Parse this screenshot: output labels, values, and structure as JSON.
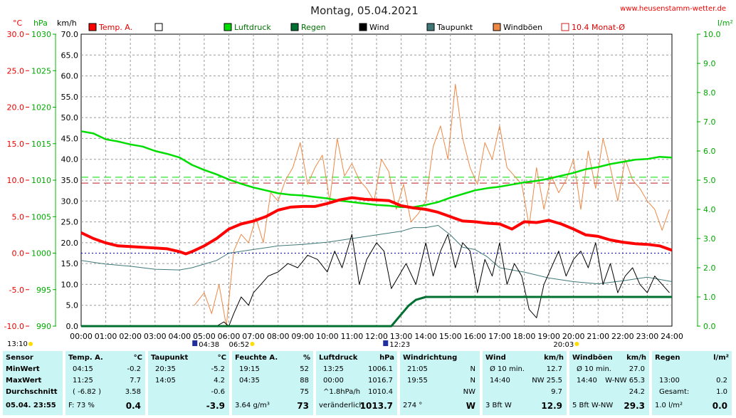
{
  "header": {
    "title": "Montag, 05.04.2021",
    "site": "www.heusenstamm-wetter.de"
  },
  "units": {
    "left1": "°C",
    "left2": "hPa",
    "left3": "km/h",
    "right": "l/m²"
  },
  "legend": [
    {
      "label": "Temp. A.",
      "color": "#ff0000",
      "filled": true
    },
    {
      "label": "",
      "color": "#000000",
      "filled": false
    },
    {
      "label": "Luftdruck",
      "color": "#00dd00",
      "filled": true
    },
    {
      "label": "Regen",
      "color": "#007030",
      "filled": true
    },
    {
      "label": "Wind",
      "color": "#000000",
      "filled": true
    },
    {
      "label": "Taupunkt",
      "color": "#407878",
      "filled": true
    },
    {
      "label": "Windböen",
      "color": "#ee8844",
      "filled": true
    },
    {
      "label": "10.4 Monat-Ø",
      "color": "#cc2222",
      "filled": false
    }
  ],
  "markers": {
    "sunrise": "04:38",
    "moonrise": "06:52",
    "moonset": "12:23",
    "sunset": "20:03",
    "left_time": "13:10"
  },
  "chart_data": {
    "type": "line",
    "x_ticks": [
      "00:00",
      "01:00",
      "02:00",
      "03:00",
      "04:00",
      "05:00",
      "06:00",
      "07:00",
      "08:00",
      "09:00",
      "10:00",
      "11:00",
      "12:00",
      "13:00",
      "14:00",
      "15:00",
      "16:00",
      "17:00",
      "18:00",
      "19:00",
      "20:00",
      "21:00",
      "22:00",
      "23:00",
      "24:00"
    ],
    "axes": {
      "temp": {
        "label": "°C",
        "min": -10,
        "max": 30,
        "ticks": [
          "30.0",
          "25.0",
          "20.0",
          "15.0",
          "10.0",
          "5.0",
          "0.0",
          "-5.0",
          "-10.0"
        ]
      },
      "pressure": {
        "label": "hPa",
        "min": 990,
        "max": 1030,
        "ticks": [
          "1030",
          "1025",
          "1020",
          "1015",
          "1010",
          "1005",
          "1000",
          "995",
          "990"
        ]
      },
      "wind": {
        "label": "km/h",
        "min": 0,
        "max": 70,
        "ticks": [
          "70.0",
          "65.0",
          "60.0",
          "55.0",
          "50.0",
          "45.0",
          "40.0",
          "35.0",
          "30.0",
          "25.0",
          "20.0",
          "15.0",
          "10.0",
          "5.0",
          "0.0"
        ]
      },
      "rain": {
        "label": "l/m²",
        "min": 0,
        "max": 10,
        "ticks": [
          "10.0",
          "9.0",
          "8.0",
          "7.0",
          "6.0",
          "5.0",
          "4.0",
          "3.0",
          "2.0",
          "1.0",
          "0.0"
        ]
      }
    },
    "reference_lines": {
      "pressure_avg": 1010.4,
      "temp_month_avg": 9.6,
      "zero": 0
    },
    "series": [
      {
        "name": "Temp. A.",
        "axis": "temp",
        "color": "#ff0000",
        "x": [
          0,
          0.5,
          1,
          1.5,
          2,
          2.5,
          3,
          3.5,
          4,
          4.25,
          4.5,
          5,
          5.5,
          6,
          6.5,
          7,
          7.5,
          8,
          8.5,
          9,
          9.5,
          10,
          10.5,
          11,
          11.5,
          12,
          12.5,
          13,
          13.5,
          14,
          14.5,
          15,
          15.5,
          16,
          16.5,
          17,
          17.5,
          18,
          18.5,
          19,
          19.5,
          20,
          20.5,
          21,
          21.5,
          22,
          22.5,
          23,
          23.5,
          24
        ],
        "y": [
          2.8,
          2.0,
          1.4,
          1.0,
          0.9,
          0.8,
          0.7,
          0.6,
          0.2,
          -0.1,
          0.2,
          1.0,
          2.0,
          3.3,
          4.0,
          4.4,
          5.0,
          5.9,
          6.3,
          6.4,
          6.4,
          6.8,
          7.3,
          7.6,
          7.4,
          7.3,
          7.2,
          6.5,
          6.2,
          6.0,
          5.6,
          5.0,
          4.4,
          4.3,
          4.1,
          4.0,
          3.3,
          4.3,
          4.2,
          4.5,
          4.0,
          3.3,
          2.5,
          2.3,
          1.8,
          1.5,
          1.3,
          1.2,
          1.0,
          0.4
        ]
      },
      {
        "name": "Luftdruck",
        "axis": "pressure",
        "color": "#00dd00",
        "x": [
          0,
          0.5,
          1,
          1.5,
          2,
          2.5,
          3,
          3.5,
          4,
          4.5,
          5,
          5.5,
          6,
          6.5,
          7,
          7.5,
          8,
          8.5,
          9,
          9.5,
          10,
          10.5,
          11,
          11.5,
          12,
          12.5,
          13,
          13.5,
          14,
          14.5,
          15,
          15.5,
          16,
          16.5,
          17,
          17.5,
          18,
          18.5,
          19,
          19.5,
          20,
          20.5,
          21,
          21.5,
          22,
          22.5,
          23,
          23.5,
          24
        ],
        "y": [
          1016.7,
          1016.4,
          1015.6,
          1015.3,
          1014.9,
          1014.6,
          1014.0,
          1013.6,
          1013.1,
          1012.1,
          1011.4,
          1010.8,
          1010.1,
          1009.5,
          1009.0,
          1008.6,
          1008.2,
          1008.0,
          1007.9,
          1007.7,
          1007.5,
          1007.2,
          1007.0,
          1006.8,
          1006.6,
          1006.5,
          1006.3,
          1006.3,
          1006.6,
          1007.0,
          1007.6,
          1008.1,
          1008.6,
          1008.9,
          1009.1,
          1009.4,
          1009.7,
          1009.9,
          1010.2,
          1010.6,
          1011.0,
          1011.5,
          1011.8,
          1012.2,
          1012.5,
          1012.8,
          1012.9,
          1013.2,
          1013.1
        ]
      },
      {
        "name": "Taupunkt",
        "axis": "temp",
        "color": "#407878",
        "x": [
          0,
          1,
          2,
          3,
          4,
          4.5,
          5,
          5.5,
          6,
          7,
          8,
          9,
          10,
          11,
          12,
          13,
          13.5,
          14,
          14.5,
          15,
          15.5,
          16,
          16.5,
          17,
          18,
          19,
          20,
          21,
          22,
          23,
          24
        ],
        "y": [
          -1.0,
          -1.5,
          -1.8,
          -2.2,
          -2.3,
          -2.0,
          -1.5,
          -1.0,
          0.0,
          0.5,
          1.0,
          1.2,
          1.5,
          2.0,
          2.5,
          3.0,
          3.5,
          3.5,
          3.8,
          2.5,
          0.8,
          0.5,
          -0.5,
          -2.0,
          -2.6,
          -3.4,
          -3.9,
          -4.2,
          -3.8,
          -3.3,
          -3.9
        ]
      },
      {
        "name": "Wind",
        "axis": "wind",
        "color": "#000000",
        "x": [
          4.6,
          5.0,
          5.5,
          5.8,
          6.0,
          6.2,
          6.5,
          6.8,
          7.0,
          7.3,
          7.6,
          8.0,
          8.4,
          8.8,
          9.2,
          9.6,
          10.0,
          10.3,
          10.6,
          11.0,
          11.3,
          11.6,
          12.0,
          12.3,
          12.6,
          12.9,
          13.2,
          13.6,
          14.0,
          14.3,
          14.6,
          14.9,
          15.2,
          15.5,
          15.8,
          16.1,
          16.4,
          16.7,
          17.0,
          17.3,
          17.6,
          17.9,
          18.2,
          18.5,
          18.8,
          19.1,
          19.4,
          19.7,
          20.0,
          20.3,
          20.6,
          20.9,
          21.2,
          21.5,
          21.8,
          22.1,
          22.4,
          22.7,
          23.0,
          23.3,
          23.6,
          23.9
        ],
        "y": [
          0,
          0,
          0,
          1,
          0,
          3,
          7,
          5,
          8,
          10,
          12,
          13,
          15,
          14,
          17,
          16,
          13,
          18,
          14,
          22,
          10,
          16,
          20,
          18,
          9,
          12,
          15,
          10,
          20,
          12,
          18,
          22,
          14,
          20,
          18,
          8,
          16,
          12,
          20,
          10,
          15,
          12,
          4,
          2,
          10,
          14,
          18,
          12,
          16,
          18,
          14,
          20,
          10,
          15,
          8,
          12,
          14,
          10,
          8,
          12,
          10,
          8
        ]
      },
      {
        "name": "Windböen",
        "axis": "wind",
        "color": "#ee8844",
        "x": [
          4.6,
          5.0,
          5.3,
          5.6,
          5.9,
          6.2,
          6.5,
          6.8,
          7.1,
          7.4,
          7.7,
          8.0,
          8.3,
          8.6,
          8.9,
          9.2,
          9.5,
          9.8,
          10.1,
          10.4,
          10.7,
          11.0,
          11.3,
          11.6,
          11.9,
          12.2,
          12.5,
          12.8,
          13.1,
          13.4,
          13.7,
          14.0,
          14.3,
          14.6,
          14.9,
          15.2,
          15.5,
          15.8,
          16.1,
          16.4,
          16.7,
          17.0,
          17.3,
          17.6,
          17.9,
          18.2,
          18.5,
          18.8,
          19.1,
          19.4,
          19.7,
          20.0,
          20.3,
          20.6,
          20.9,
          21.2,
          21.5,
          21.8,
          22.1,
          22.4,
          22.7,
          23.0,
          23.3,
          23.6,
          23.9
        ],
        "y": [
          5,
          8,
          3,
          10,
          0,
          18,
          22,
          20,
          26,
          20,
          32,
          30,
          35,
          38,
          44,
          34,
          38,
          41,
          30,
          45,
          36,
          39,
          35,
          33,
          30,
          40,
          37,
          28,
          34,
          25,
          27,
          30,
          43,
          48,
          40,
          58,
          45,
          38,
          34,
          44,
          40,
          48,
          38,
          36,
          34,
          24,
          38,
          28,
          36,
          32,
          35,
          40,
          28,
          42,
          33,
          45,
          38,
          30,
          40,
          35,
          33,
          30,
          28,
          23,
          28
        ]
      }
    ],
    "rain": {
      "axis": "rain",
      "color": "#007030",
      "x": [
        0,
        12.6,
        12.9,
        13.3,
        13.6,
        14.0,
        24
      ],
      "y": [
        0,
        0,
        0.3,
        0.7,
        0.9,
        1.0,
        1.0
      ]
    }
  },
  "stats": {
    "sensor": {
      "title": "Sensor",
      "rows": [
        "MinWert",
        "MaxWert",
        "Durchschnitt"
      ],
      "footer": "05.04. 23:55"
    },
    "temp": {
      "title": "Temp. A.",
      "unit": "°C",
      "rows": [
        [
          "04:15",
          "-0.2"
        ],
        [
          "11:25",
          "7.7"
        ],
        [
          "( -6.82 )",
          "3.58"
        ]
      ],
      "footer": [
        "F: 73 %",
        "0.4"
      ]
    },
    "dew": {
      "title": "Taupunkt",
      "unit": "°C",
      "rows": [
        [
          "20:35",
          "-5.2"
        ],
        [
          "14:05",
          "4.2"
        ],
        [
          "",
          "-0.6"
        ]
      ],
      "footer": [
        "",
        "-3.9"
      ]
    },
    "hum": {
      "title": "Feuchte A.",
      "unit": "%",
      "rows": [
        [
          "19:15",
          "52"
        ],
        [
          "04:35",
          "88"
        ],
        [
          "",
          "75"
        ]
      ],
      "footer": [
        "3.64 g/m³",
        "73"
      ]
    },
    "press": {
      "title": "Luftdruck",
      "unit": "hPa",
      "rows": [
        [
          "13:25",
          "1006.1"
        ],
        [
          "00:00",
          "1016.7"
        ],
        [
          "^1.8hPa/h",
          "1010.4"
        ]
      ],
      "footer": [
        "veränderlich",
        "1013.7"
      ]
    },
    "dir": {
      "title": "Windrichtung",
      "unit": "",
      "rows": [
        [
          "21:05",
          "N"
        ],
        [
          "19:55",
          "N"
        ],
        [
          "",
          "NW"
        ]
      ],
      "footer": [
        "274 °",
        "W"
      ]
    },
    "wind": {
      "title": "Wind",
      "unit": "km/h",
      "rows": [
        [
          "Ø 10 min.",
          "12.7"
        ],
        [
          "14:40",
          "NW 25.5"
        ],
        [
          "",
          "9.7"
        ]
      ],
      "footer": [
        "3 Bft W",
        "12.9"
      ]
    },
    "gust": {
      "title": "Windböen",
      "unit": "km/h",
      "rows": [
        [
          "Ø 10 min.",
          "27.0"
        ],
        [
          "14:40",
          "W-NW 65.3"
        ],
        [
          "",
          "24.2"
        ]
      ],
      "footer": [
        "5 Bft W-NW",
        "29.3"
      ]
    },
    "rain": {
      "title": "Regen",
      "unit": "l/m²",
      "rows": [
        [
          "",
          ""
        ],
        [
          "13:00",
          "0.2"
        ],
        [
          "Gesamt:",
          "1.0"
        ]
      ],
      "footer": [
        "1.0 l/m²",
        "0.0"
      ]
    }
  }
}
